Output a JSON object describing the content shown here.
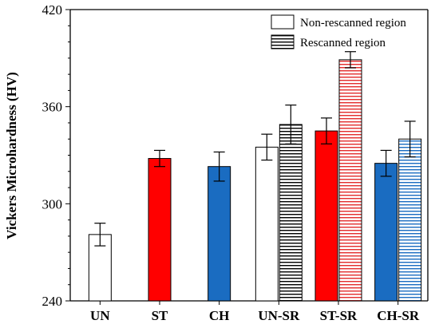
{
  "chart_data": {
    "type": "bar",
    "title": "",
    "xlabel": "",
    "ylabel": "Vickers Microhardness (HV)",
    "ylim": [
      240,
      420
    ],
    "yticks": [
      240,
      300,
      360,
      420
    ],
    "grid": false,
    "legend_position": "top-right",
    "categories": [
      "UN",
      "ST",
      "CH",
      "UN-SR",
      "ST-SR",
      "CH-SR"
    ],
    "series": [
      {
        "name": "Non-rescanned region",
        "pattern": "solid",
        "values": [
          281,
          328,
          323,
          335,
          345,
          325
        ],
        "errors": [
          7,
          5,
          9,
          8,
          8,
          8
        ],
        "fill_colors": [
          "#ffffff",
          "#ff0000",
          "#1a6cc1",
          "#ffffff",
          "#ff0000",
          "#1a6cc1"
        ]
      },
      {
        "name": "Rescanned region",
        "pattern": "horizontal-stripes",
        "values": [
          null,
          null,
          null,
          349,
          389,
          340
        ],
        "errors": [
          null,
          null,
          null,
          12,
          5,
          11
        ],
        "stripe_colors": [
          null,
          null,
          null,
          "#000000",
          "#e32d2d",
          "#1a6cc1"
        ]
      }
    ],
    "colors": {
      "white": "#ffffff",
      "red": "#ff0000",
      "blue": "#1a6cc1",
      "stripe_black": "#000000",
      "stripe_red": "#e32d2d",
      "stripe_blue": "#1a6cc1"
    }
  }
}
